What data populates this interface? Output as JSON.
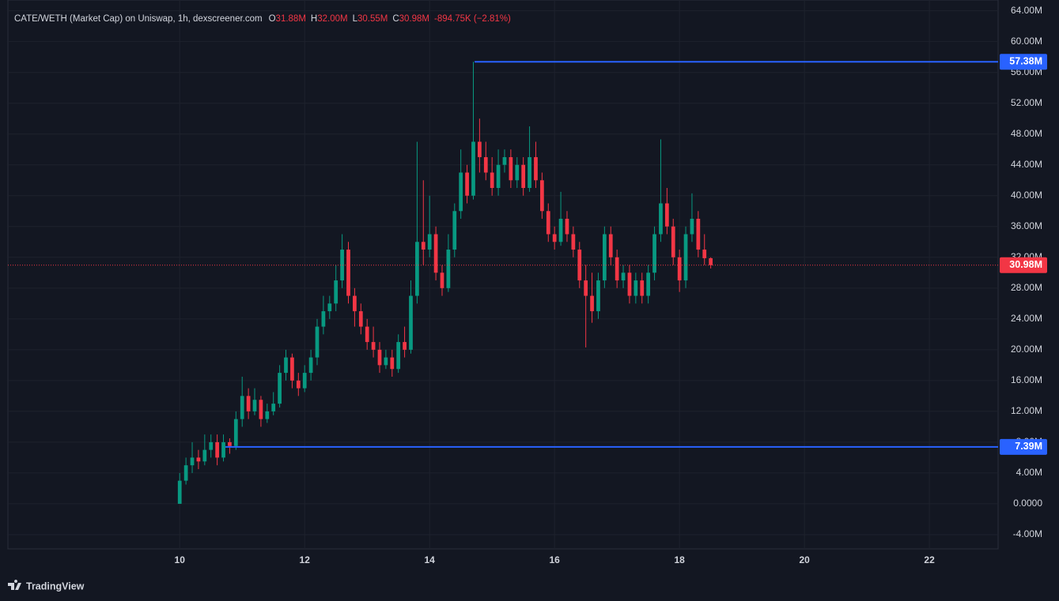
{
  "chart_data": {
    "type": "candlestick",
    "header": {
      "symbol": "CATE/WETH (Market Cap) on Uniswap, 1h, dexscreener.com",
      "ohlc": [
        {
          "key": "O",
          "value": "31.88M"
        },
        {
          "key": "H",
          "value": "32.00M"
        },
        {
          "key": "L",
          "value": "30.55M"
        },
        {
          "key": "C",
          "value": "30.98M"
        }
      ],
      "change": "-894.75K (−2.81%)"
    },
    "x": [
      10.0,
      10.1,
      10.2,
      10.3,
      10.4,
      10.5,
      10.6,
      10.7,
      10.8,
      10.9,
      11.0,
      11.1,
      11.2,
      11.3,
      11.4,
      11.5,
      11.6,
      11.7,
      11.8,
      11.9,
      12.0,
      12.1,
      12.2,
      12.3,
      12.4,
      12.5,
      12.6,
      12.7,
      12.8,
      12.9,
      13.0,
      13.1,
      13.2,
      13.3,
      13.4,
      13.5,
      13.6,
      13.7,
      13.8,
      13.9,
      14.0,
      14.1,
      14.2,
      14.3,
      14.4,
      14.5,
      14.6,
      14.7,
      14.8,
      14.9,
      15.0,
      15.1,
      15.2,
      15.3,
      15.4,
      15.5,
      15.6,
      15.7,
      15.8,
      15.9,
      16.0,
      16.1,
      16.2,
      16.3,
      16.4,
      16.5,
      16.6,
      16.7,
      16.8,
      16.9,
      17.0,
      17.1,
      17.2,
      17.3,
      17.4,
      17.5,
      17.6,
      17.7,
      17.8,
      17.9,
      18.0,
      18.1,
      18.2,
      18.3,
      18.4,
      18.5
    ],
    "open": [
      0,
      3,
      5,
      6,
      5.5,
      7,
      8,
      6,
      8,
      7.5,
      11,
      14,
      12,
      13.5,
      11,
      12,
      13,
      17,
      19,
      16,
      15,
      17,
      19,
      23,
      25,
      26,
      29,
      33,
      27,
      25,
      23,
      21,
      20,
      18,
      19,
      17.5,
      21,
      20,
      27,
      34,
      33,
      35,
      30,
      28,
      33,
      38,
      43,
      40,
      47,
      45,
      43,
      41,
      44,
      45,
      42,
      44,
      41,
      45,
      42,
      38,
      35,
      34,
      37,
      35,
      33,
      29,
      27,
      25,
      29,
      35,
      32,
      29,
      30,
      27,
      29,
      27,
      30,
      35,
      39,
      36,
      32,
      29,
      35,
      37,
      33,
      31.88
    ],
    "high": [
      4,
      6,
      8,
      7,
      9,
      9,
      9,
      9,
      8.5,
      12,
      16.5,
      15,
      15,
      14,
      13,
      14.5,
      18,
      20,
      19.5,
      17,
      18,
      20,
      24,
      27,
      27,
      31,
      35,
      34,
      28,
      26,
      24,
      23,
      21,
      20,
      20,
      22,
      23,
      29,
      47,
      42,
      40,
      36,
      31,
      35,
      39,
      46,
      44,
      57.38,
      50,
      47,
      45,
      46,
      46,
      46,
      45,
      45,
      49,
      47,
      43,
      39,
      36,
      40.5,
      38,
      36,
      34,
      31,
      30,
      30,
      36,
      36,
      33,
      31,
      31,
      30,
      30,
      31,
      36,
      47.3,
      41,
      37,
      33,
      36,
      40.3,
      38,
      35,
      32
    ],
    "low": [
      0,
      2.5,
      4,
      4.5,
      5,
      6,
      5,
      5.5,
      6.5,
      7,
      10,
      11,
      11.5,
      10,
      10.5,
      11.5,
      12.5,
      16,
      15,
      14,
      14.5,
      16,
      18,
      22,
      24,
      25,
      28,
      26,
      23,
      22,
      20,
      19,
      17,
      17.5,
      16.5,
      17,
      19,
      19.5,
      26,
      31,
      32,
      29,
      27,
      27.5,
      32,
      37,
      39,
      39.5,
      43,
      42,
      40,
      40,
      43,
      41,
      41,
      40,
      40.5,
      41,
      37,
      34,
      33,
      33.5,
      34,
      32,
      28,
      20.3,
      23.5,
      24,
      28,
      31,
      28,
      28,
      26,
      26,
      26,
      26,
      29,
      34,
      35,
      31,
      27.5,
      28,
      34,
      32,
      31,
      30.55
    ],
    "close": [
      3,
      5,
      6,
      5.5,
      7,
      8,
      6,
      8,
      7.5,
      11,
      14,
      12,
      13.5,
      11,
      12,
      13,
      17,
      19,
      16,
      15,
      17,
      19,
      23,
      25,
      26,
      29,
      33,
      27,
      25,
      23,
      21,
      20,
      18,
      19,
      17.5,
      21,
      20,
      27,
      34,
      33,
      35,
      30,
      28,
      33,
      38,
      43,
      40,
      47,
      45,
      43,
      41,
      44,
      45,
      42,
      44,
      41,
      45,
      42,
      38,
      35,
      34,
      37,
      35,
      33,
      29,
      27,
      25,
      29,
      35,
      32,
      29,
      30,
      27,
      29,
      27,
      30,
      35,
      39,
      36,
      32,
      29,
      35,
      37,
      33,
      31.88,
      30.98
    ],
    "up_color": "#089981",
    "down_color": "#f23645",
    "xlim": [
      7.25,
      23.1
    ],
    "xticks": [
      10,
      12,
      14,
      16,
      18,
      20,
      22
    ],
    "ylim": [
      -5.85,
      65.4
    ],
    "yticks": [
      {
        "value": -4,
        "label": "-4.00M"
      },
      {
        "value": 0,
        "label": "0.0000"
      },
      {
        "value": 4,
        "label": "4.00M"
      },
      {
        "value": 8,
        "label": "8.00M"
      },
      {
        "value": 12,
        "label": "12.00M"
      },
      {
        "value": 16,
        "label": "16.00M"
      },
      {
        "value": 20,
        "label": "20.00M"
      },
      {
        "value": 24,
        "label": "24.00M"
      },
      {
        "value": 28,
        "label": "28.00M"
      },
      {
        "value": 32,
        "label": "32.00M"
      },
      {
        "value": 36,
        "label": "36.00M"
      },
      {
        "value": 40,
        "label": "40.00M"
      },
      {
        "value": 44,
        "label": "44.00M"
      },
      {
        "value": 48,
        "label": "48.00M"
      },
      {
        "value": 52,
        "label": "52.00M"
      },
      {
        "value": 56,
        "label": "56.00M"
      },
      {
        "value": 60,
        "label": "60.00M"
      },
      {
        "value": 64,
        "label": "64.00M"
      }
    ],
    "grid": true,
    "price_lines": [
      {
        "value": 57.38,
        "label": "57.38M",
        "color": "#2962ff",
        "start": 14.72
      },
      {
        "value": 7.39,
        "label": "7.39M",
        "color": "#2962ff",
        "start": 10.73
      },
      {
        "value": 30.98,
        "label": "30.98M",
        "color": "#f23645",
        "style": "dotted"
      }
    ],
    "footer": "TradingView"
  }
}
